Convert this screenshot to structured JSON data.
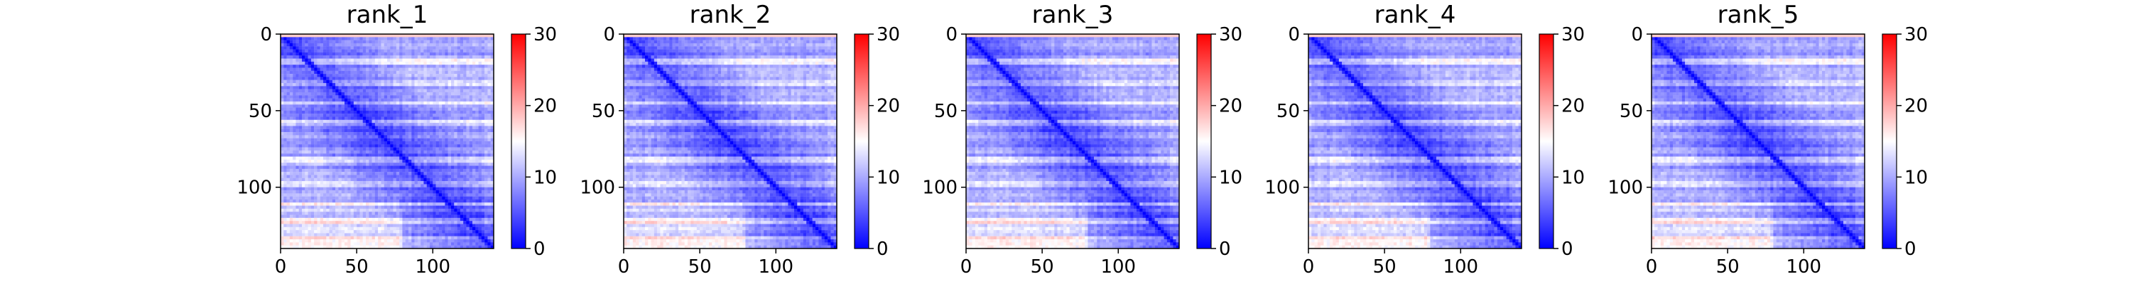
{
  "chart_data": {
    "type": "heatmap",
    "grid": false,
    "colormap": "bwr",
    "color_low": "#0000ff",
    "color_mid": "#ffffff",
    "color_high": "#ff0000",
    "matrix_size": 140,
    "xlim": [
      0,
      140
    ],
    "ylim": [
      140,
      0
    ],
    "xticks": [
      0,
      50,
      100
    ],
    "yticks": [
      0,
      50,
      100
    ],
    "colorbar": {
      "vmin": 0,
      "vmax": 30,
      "ticks": [
        0,
        10,
        20,
        30
      ]
    },
    "panels": [
      {
        "title": "rank_1"
      },
      {
        "title": "rank_2"
      },
      {
        "title": "rank_3"
      },
      {
        "title": "rank_4"
      },
      {
        "title": "rank_5"
      }
    ]
  }
}
